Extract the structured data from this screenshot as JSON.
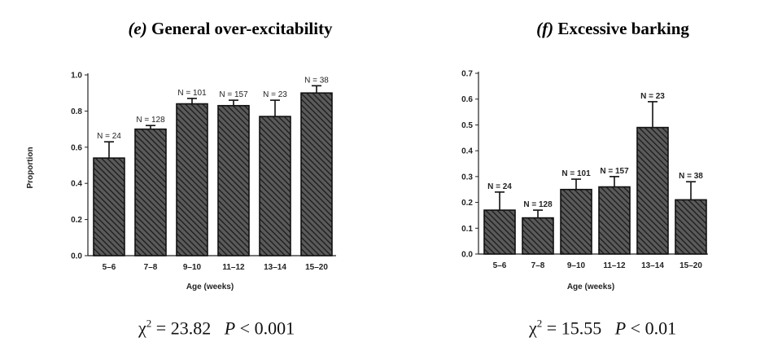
{
  "chart_data": [
    {
      "type": "bar",
      "panel_letter": "(e)",
      "title": "General over-excitability",
      "xlabel": "Age (weeks)",
      "ylabel": "Proportion",
      "ylim": [
        0,
        1.0
      ],
      "yticks": [
        "0.0",
        "0.2",
        "0.4",
        "0.6",
        "0.8",
        "1.0"
      ],
      "categories": [
        "5–6",
        "7–8",
        "9–10",
        "11–12",
        "13–14",
        "15–20"
      ],
      "values": [
        0.54,
        0.7,
        0.84,
        0.83,
        0.77,
        0.9
      ],
      "errors": [
        0.09,
        0.02,
        0.03,
        0.03,
        0.09,
        0.04
      ],
      "n_labels": [
        "N = 24",
        "N = 128",
        "N = 101",
        "N = 157",
        "N = 23",
        "N = 38"
      ],
      "stat": {
        "chi_value": "23.82",
        "p_value": "0.001"
      }
    },
    {
      "type": "bar",
      "panel_letter": "(f)",
      "title": "Excessive barking",
      "xlabel": "Age (weeks)",
      "ylabel": "",
      "ylim": [
        0,
        0.7
      ],
      "yticks": [
        "0.0",
        "0.1",
        "0.2",
        "0.3",
        "0.4",
        "0.5",
        "0.6",
        "0.7"
      ],
      "categories": [
        "5–6",
        "7–8",
        "9–10",
        "11–12",
        "13–14",
        "15–20"
      ],
      "values": [
        0.17,
        0.14,
        0.25,
        0.26,
        0.49,
        0.21
      ],
      "errors": [
        0.07,
        0.03,
        0.04,
        0.04,
        0.1,
        0.07
      ],
      "n_labels": [
        "N = 24",
        "N = 128",
        "N = 101",
        "N = 157",
        "N = 23",
        "N = 38"
      ],
      "stat": {
        "chi_value": "15.55",
        "p_value": "0.01"
      }
    }
  ]
}
